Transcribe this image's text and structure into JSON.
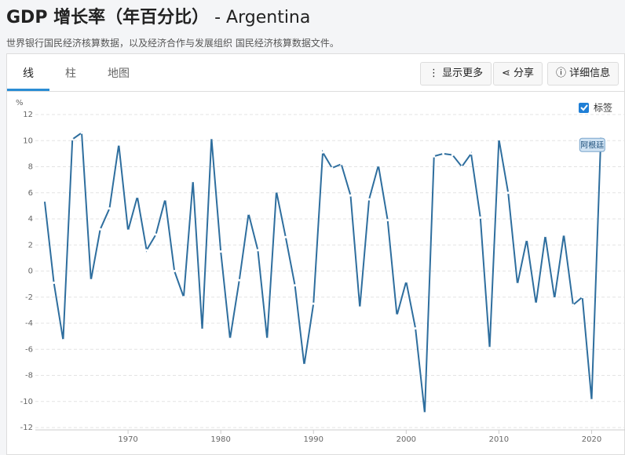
{
  "header": {
    "title": "GDP 增长率（年百分比）",
    "title_suffix": "- Argentina",
    "subtitle": "世界银行国民经济核算数据，以及经济合作与发展组织 国民经济核算数据文件。"
  },
  "tabs": [
    "线",
    "柱",
    "地图"
  ],
  "buttons": [
    "显示更多",
    "分享",
    "详细信息"
  ],
  "labels_toggle": "标签",
  "chart_data": {
    "type": "line",
    "y_unit": "%",
    "x": [
      1961,
      1962,
      1963,
      1964,
      1965,
      1966,
      1967,
      1968,
      1969,
      1970,
      1971,
      1972,
      1973,
      1974,
      1975,
      1976,
      1977,
      1978,
      1979,
      1980,
      1981,
      1982,
      1983,
      1984,
      1985,
      1986,
      1987,
      1988,
      1989,
      1990,
      1991,
      1992,
      1993,
      1994,
      1995,
      1996,
      1997,
      1998,
      1999,
      2000,
      2001,
      2002,
      2003,
      2004,
      2005,
      2006,
      2007,
      2008,
      2009,
      2010,
      2011,
      2012,
      2013,
      2014,
      2015,
      2016,
      2017,
      2018,
      2019,
      2020,
      2021
    ],
    "series": [
      {
        "name": "阿根廷",
        "color": "#2e6e9e",
        "values": [
          5.4,
          -0.9,
          -5.3,
          10.1,
          10.6,
          -0.7,
          3.2,
          4.8,
          9.7,
          3.1,
          5.7,
          1.6,
          2.8,
          5.5,
          0,
          -2,
          6.9,
          -4.5,
          10.2,
          1.5,
          -5.2,
          -0.7,
          4.4,
          1.6,
          -5.2,
          6.1,
          2.6,
          -1.1,
          -7.2,
          -2.5,
          9.1,
          7.9,
          8.2,
          5.8,
          -2.8,
          5.5,
          8.1,
          3.9,
          -3.4,
          -0.8,
          -4.4,
          -10.9,
          8.8,
          9,
          8.9,
          8,
          9,
          4.1,
          -5.9,
          10.1,
          6,
          -1,
          2.4,
          -2.5,
          2.7,
          -2.1,
          2.8,
          -2.6,
          -2,
          -9.9,
          10.3
        ]
      }
    ],
    "xlim": [
      1960,
      2023.6
    ],
    "ylim": [
      -12,
      12
    ],
    "xticks": [
      1970,
      1980,
      1990,
      2000,
      2010,
      2020
    ],
    "yticks": [
      -12,
      -10,
      -8,
      -6,
      -4,
      -2,
      0,
      2,
      4,
      6,
      8,
      10,
      12
    ],
    "grid": true
  }
}
